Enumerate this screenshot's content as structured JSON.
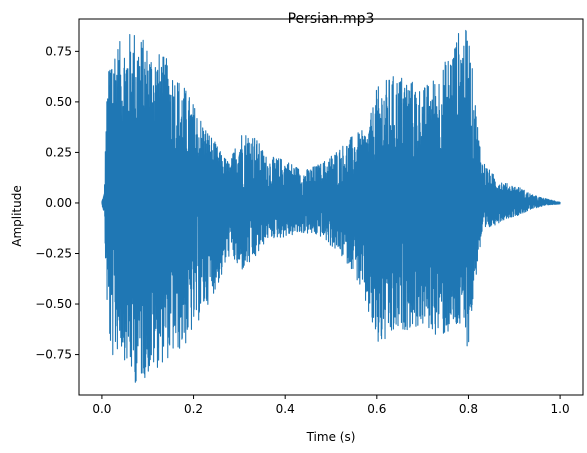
{
  "chart_data": {
    "type": "line",
    "title": "Persian.mp3",
    "xlabel": "Time (s)",
    "ylabel": "Amplitude",
    "xlim": [
      -0.05,
      1.05
    ],
    "ylim": [
      -0.95,
      0.91
    ],
    "xticks": [
      0.0,
      0.2,
      0.4,
      0.6,
      0.8,
      1.0
    ],
    "xtick_labels": [
      "0.0",
      "0.2",
      "0.4",
      "0.6",
      "0.8",
      "1.0"
    ],
    "yticks": [
      -0.75,
      -0.5,
      -0.25,
      0.0,
      0.25,
      0.5,
      0.75
    ],
    "ytick_labels": [
      "−0.75",
      "−0.50",
      "−0.25",
      "0.00",
      "0.25",
      "0.50",
      "0.75"
    ],
    "grid": false,
    "series": [
      {
        "color": "#1f77b4",
        "envelope": {
          "t": [
            0.0,
            0.005,
            0.01,
            0.02,
            0.04,
            0.07,
            0.1,
            0.14,
            0.18,
            0.22,
            0.26,
            0.28,
            0.3,
            0.33,
            0.36,
            0.4,
            0.44,
            0.48,
            0.52,
            0.55,
            0.58,
            0.6,
            0.63,
            0.66,
            0.7,
            0.74,
            0.78,
            0.8,
            0.82,
            0.83,
            0.85,
            0.88,
            0.91,
            0.94,
            0.97,
            1.0
          ],
          "max": [
            0.01,
            0.05,
            0.5,
            0.82,
            0.8,
            0.87,
            0.79,
            0.72,
            0.58,
            0.41,
            0.25,
            0.2,
            0.36,
            0.35,
            0.23,
            0.22,
            0.16,
            0.2,
            0.28,
            0.34,
            0.37,
            0.57,
            0.63,
            0.64,
            0.57,
            0.66,
            0.86,
            0.86,
            0.4,
            0.22,
            0.15,
            0.1,
            0.08,
            0.04,
            0.02,
            0.005
          ],
          "min": [
            -0.01,
            -0.05,
            -0.48,
            -0.79,
            -0.72,
            -0.9,
            -0.86,
            -0.78,
            -0.72,
            -0.55,
            -0.38,
            -0.25,
            -0.35,
            -0.3,
            -0.18,
            -0.17,
            -0.15,
            -0.17,
            -0.26,
            -0.34,
            -0.55,
            -0.73,
            -0.69,
            -0.63,
            -0.62,
            -0.67,
            -0.64,
            -0.72,
            -0.3,
            -0.18,
            -0.12,
            -0.08,
            -0.06,
            -0.03,
            -0.01,
            -0.005
          ]
        }
      }
    ]
  }
}
